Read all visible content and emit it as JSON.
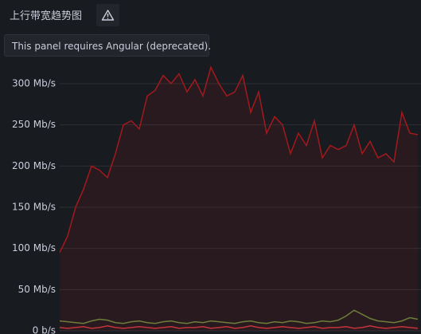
{
  "panel": {
    "title": "上行带宽趋势图",
    "tooltip": "This panel requires Angular (deprecated)."
  },
  "chart_data": {
    "type": "line",
    "categories": [
      null,
      null,
      null,
      null,
      null,
      null,
      null,
      null,
      null,
      null,
      null,
      null,
      null,
      null,
      null,
      null,
      null,
      null,
      null,
      null,
      null,
      null,
      null,
      null,
      null,
      null,
      null,
      null,
      null,
      null,
      null,
      null,
      null,
      null,
      null,
      null,
      null,
      null,
      null,
      null,
      null,
      null,
      null,
      null,
      null,
      null
    ],
    "series": [
      {
        "color": "#a3191d",
        "fill": true,
        "values": [
          95,
          115,
          150,
          172,
          200,
          195,
          186,
          215,
          250,
          255,
          245,
          285,
          292,
          310,
          300,
          312,
          290,
          305,
          285,
          320,
          300,
          285,
          290,
          310,
          265,
          290,
          240,
          260,
          250,
          215,
          240,
          225,
          255,
          210,
          225,
          220,
          225,
          250,
          215,
          230,
          210,
          215,
          205,
          265,
          240,
          238
        ]
      },
      {
        "color": "#6e7d3a",
        "fill": false,
        "values": [
          12,
          11,
          10,
          9,
          12,
          14,
          13,
          10,
          9,
          11,
          12,
          10,
          9,
          11,
          12,
          10,
          9,
          11,
          10,
          12,
          11,
          10,
          9,
          11,
          12,
          10,
          9,
          11,
          10,
          12,
          11,
          9,
          10,
          12,
          11,
          13,
          18,
          25,
          20,
          15,
          12,
          11,
          10,
          12,
          16,
          14
        ]
      },
      {
        "color": "#c4353a",
        "fill": false,
        "values": [
          4,
          3,
          4,
          5,
          3,
          4,
          6,
          4,
          3,
          4,
          5,
          4,
          3,
          4,
          5,
          3,
          4,
          4,
          5,
          3,
          4,
          5,
          3,
          4,
          6,
          4,
          3,
          4,
          5,
          4,
          3,
          4,
          5,
          3,
          4,
          4,
          5,
          3,
          4,
          6,
          4,
          3,
          4,
          5,
          4,
          3
        ]
      }
    ],
    "ylim": [
      0,
      358
    ],
    "yticks": [
      {
        "value": 0,
        "label": "0 b/s"
      },
      {
        "value": 50,
        "label": "50 Mb/s"
      },
      {
        "value": 100,
        "label": "100 Mb/s"
      },
      {
        "value": 150,
        "label": "150 Mb/s"
      },
      {
        "value": 200,
        "label": "200 Mb/s"
      },
      {
        "value": 250,
        "label": "250 Mb/s"
      },
      {
        "value": 300,
        "label": "300 Mb/s"
      }
    ],
    "grid": true
  }
}
